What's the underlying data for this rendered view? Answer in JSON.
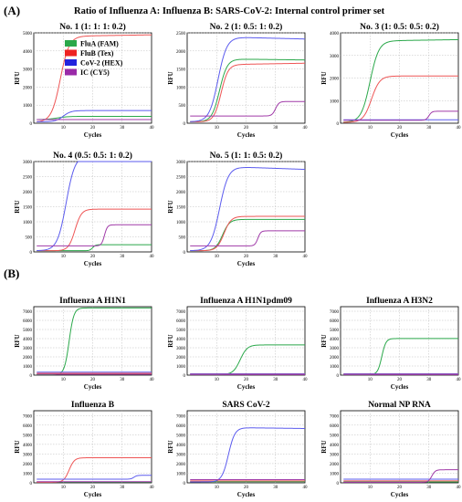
{
  "figure": {
    "panel_a_label": "(A)",
    "panel_b_label": "(B)",
    "main_title": "Ratio of Influenza A: Influenza B: SARS-CoV-2: Internal control primer set"
  },
  "series_colors": {
    "FluA (FAM)": "#2aa84a",
    "FluB (Tex)": "#ee5555",
    "CoV-2 (HEX)": "#5b5bee",
    "IC (CY5)": "#a03aa8"
  },
  "legend": [
    {
      "label": "FluA (FAM)",
      "color": "#2aa84a"
    },
    {
      "label": "FluB (Tex)",
      "color": "#ee2222"
    },
    {
      "label": "CoV-2 (HEX)",
      "color": "#2222dd"
    },
    {
      "label": "IC (CY5)",
      "color": "#9a2aa8"
    }
  ],
  "chart_data": [
    {
      "type": "line",
      "panel": "A",
      "title": "No. 1 (1: 1: 1: 0.2)",
      "xlabel": "Cycles",
      "ylabel": "RFU",
      "xlim": [
        0,
        40
      ],
      "ylim": [
        0,
        5000
      ],
      "yticks": [
        0,
        1000,
        2000,
        3000,
        4000,
        5000
      ],
      "xticks": [
        10,
        20,
        30,
        40
      ],
      "grid": true,
      "legend_position": "upper-left",
      "series": [
        {
          "name": "FluA (FAM)",
          "baseline": 200,
          "plateau": 180,
          "ct": 8,
          "k": 1.8,
          "drift": 0
        },
        {
          "name": "FluB (Tex)",
          "baseline": 60,
          "plateau": 4750,
          "ct": 9,
          "k": 1.5,
          "drift": 80
        },
        {
          "name": "CoV-2 (HEX)",
          "baseline": 80,
          "plateau": 620,
          "ct": 10,
          "k": 1.3,
          "drift": 0
        },
        {
          "name": "IC (CY5)",
          "baseline": 200,
          "plateau": 0,
          "ct": 30,
          "k": 1,
          "drift": 0
        }
      ]
    },
    {
      "type": "line",
      "panel": "A",
      "title": "No. 2 (1: 0.5: 1: 0.2)",
      "xlabel": "Cycles",
      "ylabel": "RFU",
      "xlim": [
        0,
        40
      ],
      "ylim": [
        0,
        2500
      ],
      "yticks": [
        0,
        500,
        1000,
        1500,
        2000,
        2500
      ],
      "xticks": [
        10,
        20,
        30,
        40
      ],
      "grid": true,
      "series": [
        {
          "name": "FluA (FAM)",
          "baseline": 40,
          "plateau": 1740,
          "ct": 11,
          "k": 1.3,
          "drift": -30
        },
        {
          "name": "FluB (Tex)",
          "baseline": 40,
          "plateau": 1580,
          "ct": 11.5,
          "k": 1.2,
          "drift": 40
        },
        {
          "name": "CoV-2 (HEX)",
          "baseline": 40,
          "plateau": 2350,
          "ct": 10.5,
          "k": 1.5,
          "drift": -60
        },
        {
          "name": "IC (CY5)",
          "baseline": 200,
          "plateau": 400,
          "ct": 30,
          "k": 0.6,
          "drift": 0
        }
      ]
    },
    {
      "type": "line",
      "panel": "A",
      "title": "No. 3 (1: 0.5: 0.5: 0.2)",
      "xlabel": "Cycles",
      "ylabel": "RFU",
      "xlim": [
        0,
        40
      ],
      "ylim": [
        0,
        4000
      ],
      "yticks": [
        0,
        1000,
        2000,
        3000,
        4000
      ],
      "xticks": [
        10,
        20,
        30,
        40
      ],
      "grid": true,
      "series": [
        {
          "name": "FluA (FAM)",
          "baseline": 40,
          "plateau": 3600,
          "ct": 10,
          "k": 1.5,
          "drift": 60
        },
        {
          "name": "FluB (Tex)",
          "baseline": 40,
          "plateau": 2050,
          "ct": 10.5,
          "k": 1.4,
          "drift": 0
        },
        {
          "name": "CoV-2 (HEX)",
          "baseline": 150,
          "plateau": 0,
          "ct": 10,
          "k": 1,
          "drift": 0
        },
        {
          "name": "IC (CY5)",
          "baseline": 130,
          "plateau": 400,
          "ct": 30,
          "k": 0.5,
          "drift": 0
        }
      ]
    },
    {
      "type": "line",
      "panel": "A",
      "title": "No. 4 (0.5: 0.5: 1: 0.2)",
      "xlabel": "Cycles",
      "ylabel": "RFU",
      "xlim": [
        0,
        40
      ],
      "ylim": [
        0,
        3000
      ],
      "yticks": [
        0,
        500,
        1000,
        1500,
        2000,
        2500,
        3000
      ],
      "xticks": [
        10,
        20,
        30,
        40
      ],
      "grid": true,
      "series": [
        {
          "name": "FluA (FAM)",
          "baseline": 40,
          "plateau": 200,
          "ct": 20,
          "k": 0.5,
          "drift": 0
        },
        {
          "name": "FluB (Tex)",
          "baseline": 40,
          "plateau": 1380,
          "ct": 14,
          "k": 1.1,
          "drift": 0
        },
        {
          "name": "CoV-2 (HEX)",
          "baseline": 40,
          "plateau": 3180,
          "ct": 11,
          "k": 1.5,
          "drift": -60
        },
        {
          "name": "IC (CY5)",
          "baseline": 200,
          "plateau": 700,
          "ct": 24,
          "k": 0.5,
          "drift": 0
        }
      ]
    },
    {
      "type": "line",
      "panel": "A",
      "title": "No. 5 (1: 1: 0.5: 0.2)",
      "xlabel": "Cycles",
      "ylabel": "RFU",
      "xlim": [
        0,
        40
      ],
      "ylim": [
        0,
        3000
      ],
      "yticks": [
        0,
        500,
        1000,
        1500,
        2000,
        2500,
        3000
      ],
      "xticks": [
        10,
        20,
        30,
        40
      ],
      "grid": true,
      "series": [
        {
          "name": "FluA (FAM)",
          "baseline": 40,
          "plateau": 1040,
          "ct": 12,
          "k": 1.2,
          "drift": 0
        },
        {
          "name": "FluB (Tex)",
          "baseline": 40,
          "plateau": 1140,
          "ct": 12.5,
          "k": 1.2,
          "drift": 0
        },
        {
          "name": "CoV-2 (HEX)",
          "baseline": 40,
          "plateau": 2800,
          "ct": 11,
          "k": 1.5,
          "drift": -100
        },
        {
          "name": "IC (CY5)",
          "baseline": 200,
          "plateau": 500,
          "ct": 24,
          "k": 0.5,
          "drift": 0
        }
      ]
    },
    {
      "type": "line",
      "panel": "B",
      "title": "Influenza A H1N1",
      "xlabel": "Cycles",
      "ylabel": "RFU",
      "xlim": [
        0,
        40
      ],
      "ylim": [
        0,
        7500
      ],
      "yticks": [
        0,
        1000,
        2000,
        3000,
        4000,
        5000,
        6000,
        7000
      ],
      "xticks": [
        10,
        20,
        30,
        40
      ],
      "grid": true,
      "series": [
        {
          "name": "FluA (FAM)",
          "baseline": 60,
          "plateau": 7300,
          "ct": 12,
          "k": 0.8,
          "drift": 0
        },
        {
          "name": "FluB (Tex)",
          "baseline": 200,
          "plateau": 0,
          "ct": 30,
          "k": 1,
          "drift": 0
        },
        {
          "name": "CoV-2 (HEX)",
          "baseline": 330,
          "plateau": 0,
          "ct": 30,
          "k": 1,
          "drift": 0
        },
        {
          "name": "IC (CY5)",
          "baseline": 100,
          "plateau": 0,
          "ct": 30,
          "k": 1,
          "drift": 0
        }
      ]
    },
    {
      "type": "line",
      "panel": "B",
      "title": "Influenza A H1N1pdm09",
      "xlabel": "Cycles",
      "ylabel": "RFU",
      "xlim": [
        0,
        40
      ],
      "ylim": [
        0,
        7500
      ],
      "yticks": [
        0,
        1000,
        2000,
        3000,
        4000,
        5000,
        6000,
        7000
      ],
      "xticks": [
        10,
        20,
        30,
        40
      ],
      "grid": true,
      "series": [
        {
          "name": "FluA (FAM)",
          "baseline": 60,
          "plateau": 3250,
          "ct": 18,
          "k": 1.2,
          "drift": 0
        },
        {
          "name": "FluB (Tex)",
          "baseline": 150,
          "plateau": 0,
          "ct": 30,
          "k": 1,
          "drift": 0
        },
        {
          "name": "CoV-2 (HEX)",
          "baseline": 120,
          "plateau": 0,
          "ct": 30,
          "k": 1,
          "drift": 0
        },
        {
          "name": "IC (CY5)",
          "baseline": 60,
          "plateau": 0,
          "ct": 30,
          "k": 1,
          "drift": 0
        }
      ]
    },
    {
      "type": "line",
      "panel": "B",
      "title": "Influenza A H3N2",
      "xlabel": "Cycles",
      "ylabel": "RFU",
      "xlim": [
        0,
        40
      ],
      "ylim": [
        0,
        7500
      ],
      "yticks": [
        0,
        1000,
        2000,
        3000,
        4000,
        5000,
        6000,
        7000
      ],
      "xticks": [
        10,
        20,
        30,
        40
      ],
      "grid": true,
      "series": [
        {
          "name": "FluA (FAM)",
          "baseline": 60,
          "plateau": 3950,
          "ct": 14,
          "k": 0.7,
          "drift": 0
        },
        {
          "name": "FluB (Tex)",
          "baseline": 150,
          "plateau": 0,
          "ct": 30,
          "k": 1,
          "drift": 0
        },
        {
          "name": "CoV-2 (HEX)",
          "baseline": 120,
          "plateau": 0,
          "ct": 30,
          "k": 1,
          "drift": 0
        },
        {
          "name": "IC (CY5)",
          "baseline": 60,
          "plateau": 0,
          "ct": 30,
          "k": 1,
          "drift": 0
        }
      ]
    },
    {
      "type": "line",
      "panel": "B",
      "title": "Influenza B",
      "xlabel": "Cycles",
      "ylabel": "RFU",
      "xlim": [
        0,
        40
      ],
      "ylim": [
        0,
        7500
      ],
      "yticks": [
        0,
        1000,
        2000,
        3000,
        4000,
        5000,
        6000,
        7000
      ],
      "xticks": [
        10,
        20,
        30,
        40
      ],
      "grid": true,
      "series": [
        {
          "name": "FluA (FAM)",
          "baseline": 80,
          "plateau": 0,
          "ct": 30,
          "k": 1,
          "drift": 0
        },
        {
          "name": "FluB (Tex)",
          "baseline": 60,
          "plateau": 2550,
          "ct": 12,
          "k": 0.9,
          "drift": 0
        },
        {
          "name": "CoV-2 (HEX)",
          "baseline": 380,
          "plateau": 400,
          "ct": 34,
          "k": 0.5,
          "drift": 0
        },
        {
          "name": "IC (CY5)",
          "baseline": 120,
          "plateau": 0,
          "ct": 30,
          "k": 1,
          "drift": 0
        }
      ]
    },
    {
      "type": "line",
      "panel": "B",
      "title": "SARS CoV-2",
      "xlabel": "Cycles",
      "ylabel": "RFU",
      "xlim": [
        0,
        40
      ],
      "ylim": [
        0,
        7500
      ],
      "yticks": [
        0,
        1000,
        2000,
        3000,
        4000,
        5000,
        6000,
        7000
      ],
      "xticks": [
        10,
        20,
        30,
        40
      ],
      "grid": true,
      "series": [
        {
          "name": "FluA (FAM)",
          "baseline": 120,
          "plateau": 0,
          "ct": 30,
          "k": 1,
          "drift": 0
        },
        {
          "name": "FluB (Tex)",
          "baseline": 200,
          "plateau": 0,
          "ct": 30,
          "k": 1,
          "drift": 0
        },
        {
          "name": "CoV-2 (HEX)",
          "baseline": 100,
          "plateau": 5650,
          "ct": 14,
          "k": 1.1,
          "drift": -100
        },
        {
          "name": "IC (CY5)",
          "baseline": 330,
          "plateau": 0,
          "ct": 30,
          "k": 1,
          "drift": 0
        }
      ]
    },
    {
      "type": "line",
      "panel": "B",
      "title": "Normal NP RNA",
      "xlabel": "Cycles",
      "ylabel": "RFU",
      "xlim": [
        0,
        40
      ],
      "ylim": [
        0,
        7500
      ],
      "yticks": [
        0,
        1000,
        2000,
        3000,
        4000,
        5000,
        6000,
        7000
      ],
      "xticks": [
        10,
        20,
        30,
        40
      ],
      "grid": true,
      "series": [
        {
          "name": "FluA (FAM)",
          "baseline": 100,
          "plateau": 0,
          "ct": 30,
          "k": 1,
          "drift": 0
        },
        {
          "name": "FluB (Tex)",
          "baseline": 200,
          "plateau": 0,
          "ct": 30,
          "k": 1,
          "drift": 0
        },
        {
          "name": "CoV-2 (HEX)",
          "baseline": 380,
          "plateau": 0,
          "ct": 30,
          "k": 1,
          "drift": 0
        },
        {
          "name": "IC (CY5)",
          "baseline": 60,
          "plateau": 1300,
          "ct": 31,
          "k": 0.6,
          "drift": 0
        }
      ]
    }
  ]
}
